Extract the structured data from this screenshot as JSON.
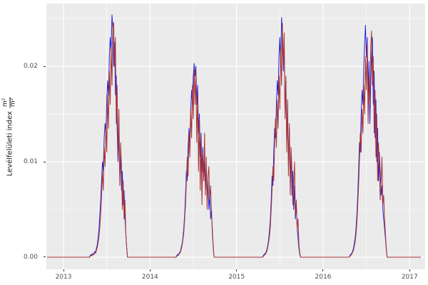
{
  "chart_data": {
    "type": "line",
    "title": "",
    "xlabel": "",
    "ylabel": "Levélfelületi index",
    "ylabel_unit_numerator": "m²",
    "ylabel_unit_denominator": "m²",
    "legend": "none",
    "grid": "on",
    "x_ticks": [
      2013,
      2014,
      2015,
      2016,
      2017
    ],
    "x_tick_labels": [
      "2013",
      "2014",
      "2015",
      "2016",
      "2017"
    ],
    "x_minor": [
      2013.5,
      2014.5,
      2015.5,
      2016.5
    ],
    "x_range": [
      2012.802,
      2017.179
    ],
    "y_ticks": [
      0,
      0.01,
      0.02
    ],
    "y_tick_labels": [
      "0.00",
      "0.01",
      "0.02"
    ],
    "y_minor": [
      0.005,
      0.015,
      0.025
    ],
    "y_range": [
      -0.00127,
      0.02657
    ],
    "unit_scale": 0.001,
    "colors": {
      "panel": "#EBEBEB",
      "grid": "#FFFFFF",
      "axis_text": "#4D4D4D",
      "axis_title": "#1A1A1A",
      "tick": "#333333",
      "series_blue": "#2323DC",
      "series_red": "#A93434"
    },
    "series": [
      {
        "name": "series-blue",
        "color": "#2323DC",
        "baseline_start": 2012.81,
        "baseline_end": 2017.13,
        "season_step": 0.01,
        "seasons": [
          {
            "start": 2013.3,
            "values": [
              0,
              0.2,
              0.3,
              0.2,
              0.4,
              0.3,
              0.6,
              0.5,
              0.9,
              1.3,
              2,
              3,
              4.5,
              6,
              8,
              10,
              9,
              12.5,
              14,
              13,
              16.5,
              18.5,
              17,
              21,
              23,
              21.5,
              25.4,
              24,
              20,
              22.5,
              17,
              19,
              13.5,
              10,
              13,
              8.5,
              11,
              7,
              9,
              5.5,
              7,
              4,
              2.5,
              1,
              0
            ]
          },
          {
            "start": 2014.3,
            "values": [
              0,
              0.2,
              0.3,
              0.3,
              0.5,
              0.6,
              1,
              1.4,
              2,
              3,
              4.5,
              6.5,
              9,
              8,
              11.5,
              13.5,
              12,
              15.5,
              17.5,
              16,
              19,
              20.3,
              19,
              20,
              16,
              18,
              13,
              15,
              10.5,
              13,
              9,
              11.5,
              8,
              10,
              7,
              9,
              6,
              8,
              5,
              6.5,
              4,
              5,
              2.5,
              1,
              0
            ]
          },
          {
            "start": 2015.3,
            "values": [
              0,
              0.2,
              0.3,
              0.4,
              0.5,
              0.8,
              1.2,
              1.8,
              2.8,
              4,
              6,
              8.5,
              7.5,
              11,
              13.5,
              12.5,
              16,
              18.5,
              17,
              21,
              23,
              20,
              25.1,
              23.5,
              19.5,
              22,
              15,
              18.5,
              12,
              16,
              9.5,
              13.5,
              8,
              11,
              6.5,
              9,
              5,
              7.5,
              4,
              5.5,
              3,
              2,
              1,
              0.3,
              0
            ]
          },
          {
            "start": 2016.3,
            "values": [
              0,
              0.2,
              0.3,
              0.4,
              0.6,
              0.9,
              1.4,
              2,
              3,
              4.5,
              6.5,
              9,
              12,
              11,
              15,
              17.5,
              16,
              20,
              22.5,
              24.3,
              21,
              23,
              17,
              20.5,
              14,
              18,
              21.5,
              23,
              16,
              19.5,
              12.5,
              16.5,
              10,
              13.5,
              8,
              11,
              9,
              6.5,
              7.5,
              5,
              4,
              3,
              2,
              0.8,
              0
            ]
          }
        ]
      },
      {
        "name": "series-red",
        "color": "#A93434",
        "baseline_start": 2012.81,
        "baseline_end": 2017.13,
        "season_step": 0.01,
        "seasons": [
          {
            "start": 2013.3,
            "values": [
              0,
              0.1,
              0.2,
              0.15,
              0.3,
              0.25,
              0.5,
              0.4,
              0.7,
              1,
              1.5,
              2.2,
              3.2,
              4.5,
              6.5,
              9,
              7,
              11.5,
              9.5,
              14,
              11,
              17,
              13.5,
              19.5,
              16,
              22,
              18,
              24,
              24.6,
              20,
              23,
              14,
              18,
              10.5,
              15.5,
              7.5,
              12,
              9.5,
              5,
              8,
              4,
              6,
              2.5,
              1,
              0
            ]
          },
          {
            "start": 2014.3,
            "values": [
              0,
              0.1,
              0.2,
              0.2,
              0.4,
              0.5,
              0.8,
              1.2,
              1.8,
              2.5,
              4,
              5.5,
              8,
              10.5,
              8.5,
              13,
              10.5,
              15.5,
              12.5,
              18,
              14.5,
              19.8,
              16,
              19.5,
              12,
              17,
              9,
              14.5,
              7,
              12.5,
              5.5,
              11,
              8,
              13,
              6.5,
              10.5,
              5,
              8.5,
              9.5,
              6,
              7.5,
              4.5,
              3,
              1.2,
              0
            ]
          },
          {
            "start": 2015.3,
            "values": [
              0,
              0.1,
              0.2,
              0.3,
              0.4,
              0.6,
              1,
              1.5,
              2.2,
              3.2,
              5,
              7,
              9.5,
              8,
              12,
              14.5,
              11.5,
              16.5,
              13.5,
              19,
              15.5,
              22,
              18,
              24.5,
              20,
              23.5,
              14.5,
              19,
              11,
              16.5,
              8.5,
              14,
              6.5,
              11.5,
              9,
              5.5,
              7.5,
              10,
              4.5,
              6,
              3,
              4,
              1.5,
              0.5,
              0
            ]
          },
          {
            "start": 2016.3,
            "values": [
              0,
              0.1,
              0.2,
              0.3,
              0.5,
              0.7,
              1.1,
              1.6,
              2.4,
              3.6,
              5.5,
              7.5,
              10,
              13,
              11,
              15.5,
              13,
              18,
              15,
              21,
              17.5,
              22.5,
              14,
              19,
              16,
              22,
              23.7,
              18,
              21,
              13,
              17.5,
              10.5,
              15,
              8,
              12,
              9.5,
              6,
              8,
              10.5,
              5.5,
              6.5,
              4,
              2.5,
              1,
              0
            ]
          }
        ]
      }
    ]
  }
}
